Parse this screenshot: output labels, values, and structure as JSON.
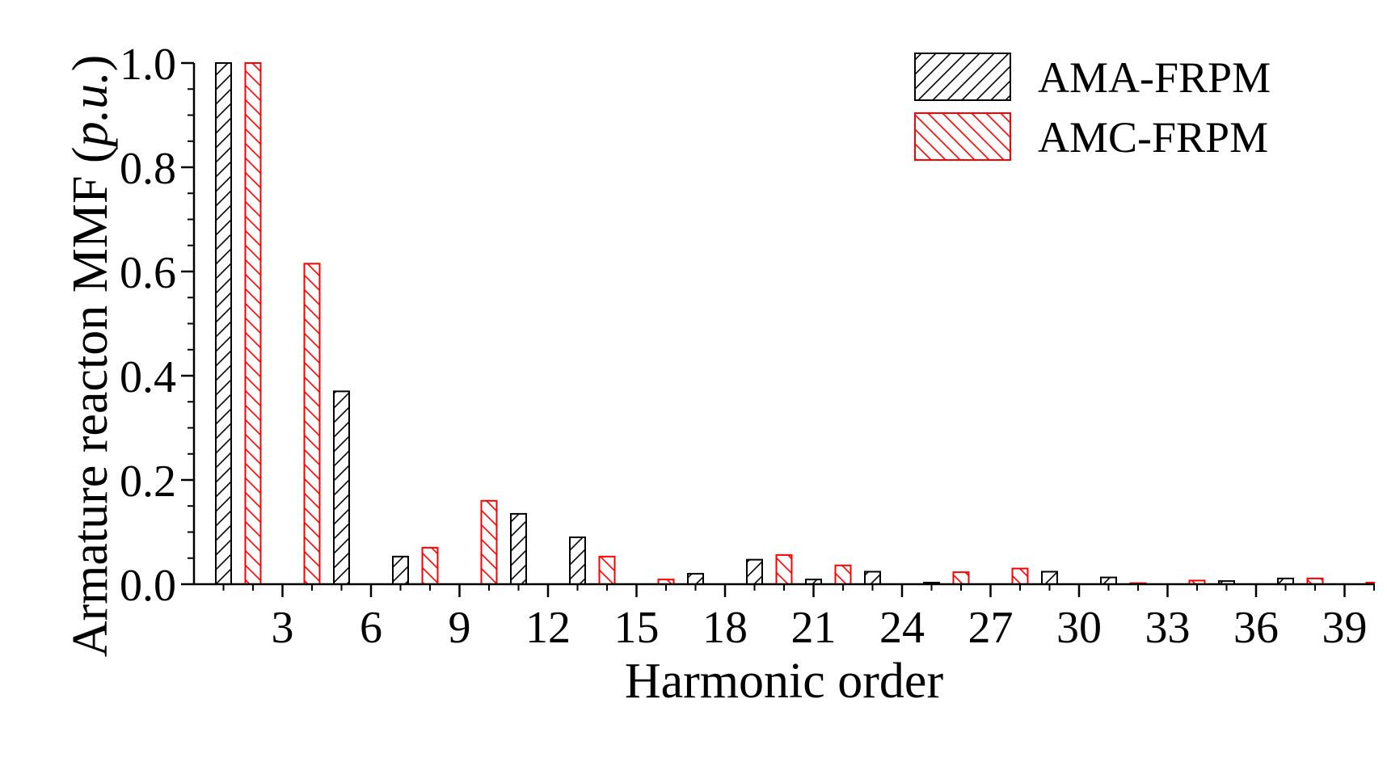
{
  "chart_data": {
    "type": "bar",
    "xlabel": "Harmonic order",
    "ylabel": "Armature reacton MMF ",
    "ylabel_unit": "p.u.",
    "ylim": [
      0,
      1.0
    ],
    "xlim": [
      0,
      40
    ],
    "yticks": [
      "0.0",
      "0.2",
      "0.4",
      "0.6",
      "0.8",
      "1.0"
    ],
    "xticks": [
      "3",
      "6",
      "9",
      "12",
      "15",
      "18",
      "21",
      "24",
      "27",
      "30",
      "33",
      "36",
      "39"
    ],
    "legend_position": "top-right",
    "series": [
      {
        "name": "AMA-FRPM",
        "color": "#000000",
        "hatch": "forward",
        "points": [
          {
            "x": 1,
            "y": 1.0
          },
          {
            "x": 5,
            "y": 0.37
          },
          {
            "x": 7,
            "y": 0.053
          },
          {
            "x": 11,
            "y": 0.135
          },
          {
            "x": 13,
            "y": 0.09
          },
          {
            "x": 17,
            "y": 0.02
          },
          {
            "x": 19,
            "y": 0.047
          },
          {
            "x": 21,
            "y": 0.009
          },
          {
            "x": 23,
            "y": 0.024
          },
          {
            "x": 25,
            "y": 0.003
          },
          {
            "x": 29,
            "y": 0.024
          },
          {
            "x": 31,
            "y": 0.013
          },
          {
            "x": 35,
            "y": 0.006
          },
          {
            "x": 37,
            "y": 0.011
          }
        ]
      },
      {
        "name": "AMC-FRPM",
        "color": "#ff0000",
        "hatch": "backward",
        "points": [
          {
            "x": 2,
            "y": 1.0
          },
          {
            "x": 4,
            "y": 0.615
          },
          {
            "x": 8,
            "y": 0.07
          },
          {
            "x": 10,
            "y": 0.16
          },
          {
            "x": 14,
            "y": 0.053
          },
          {
            "x": 16,
            "y": 0.009
          },
          {
            "x": 20,
            "y": 0.056
          },
          {
            "x": 22,
            "y": 0.036
          },
          {
            "x": 26,
            "y": 0.023
          },
          {
            "x": 28,
            "y": 0.03
          },
          {
            "x": 32,
            "y": 0.002
          },
          {
            "x": 34,
            "y": 0.007
          },
          {
            "x": 38,
            "y": 0.011
          },
          {
            "x": 40,
            "y": 0.003
          }
        ]
      }
    ]
  }
}
